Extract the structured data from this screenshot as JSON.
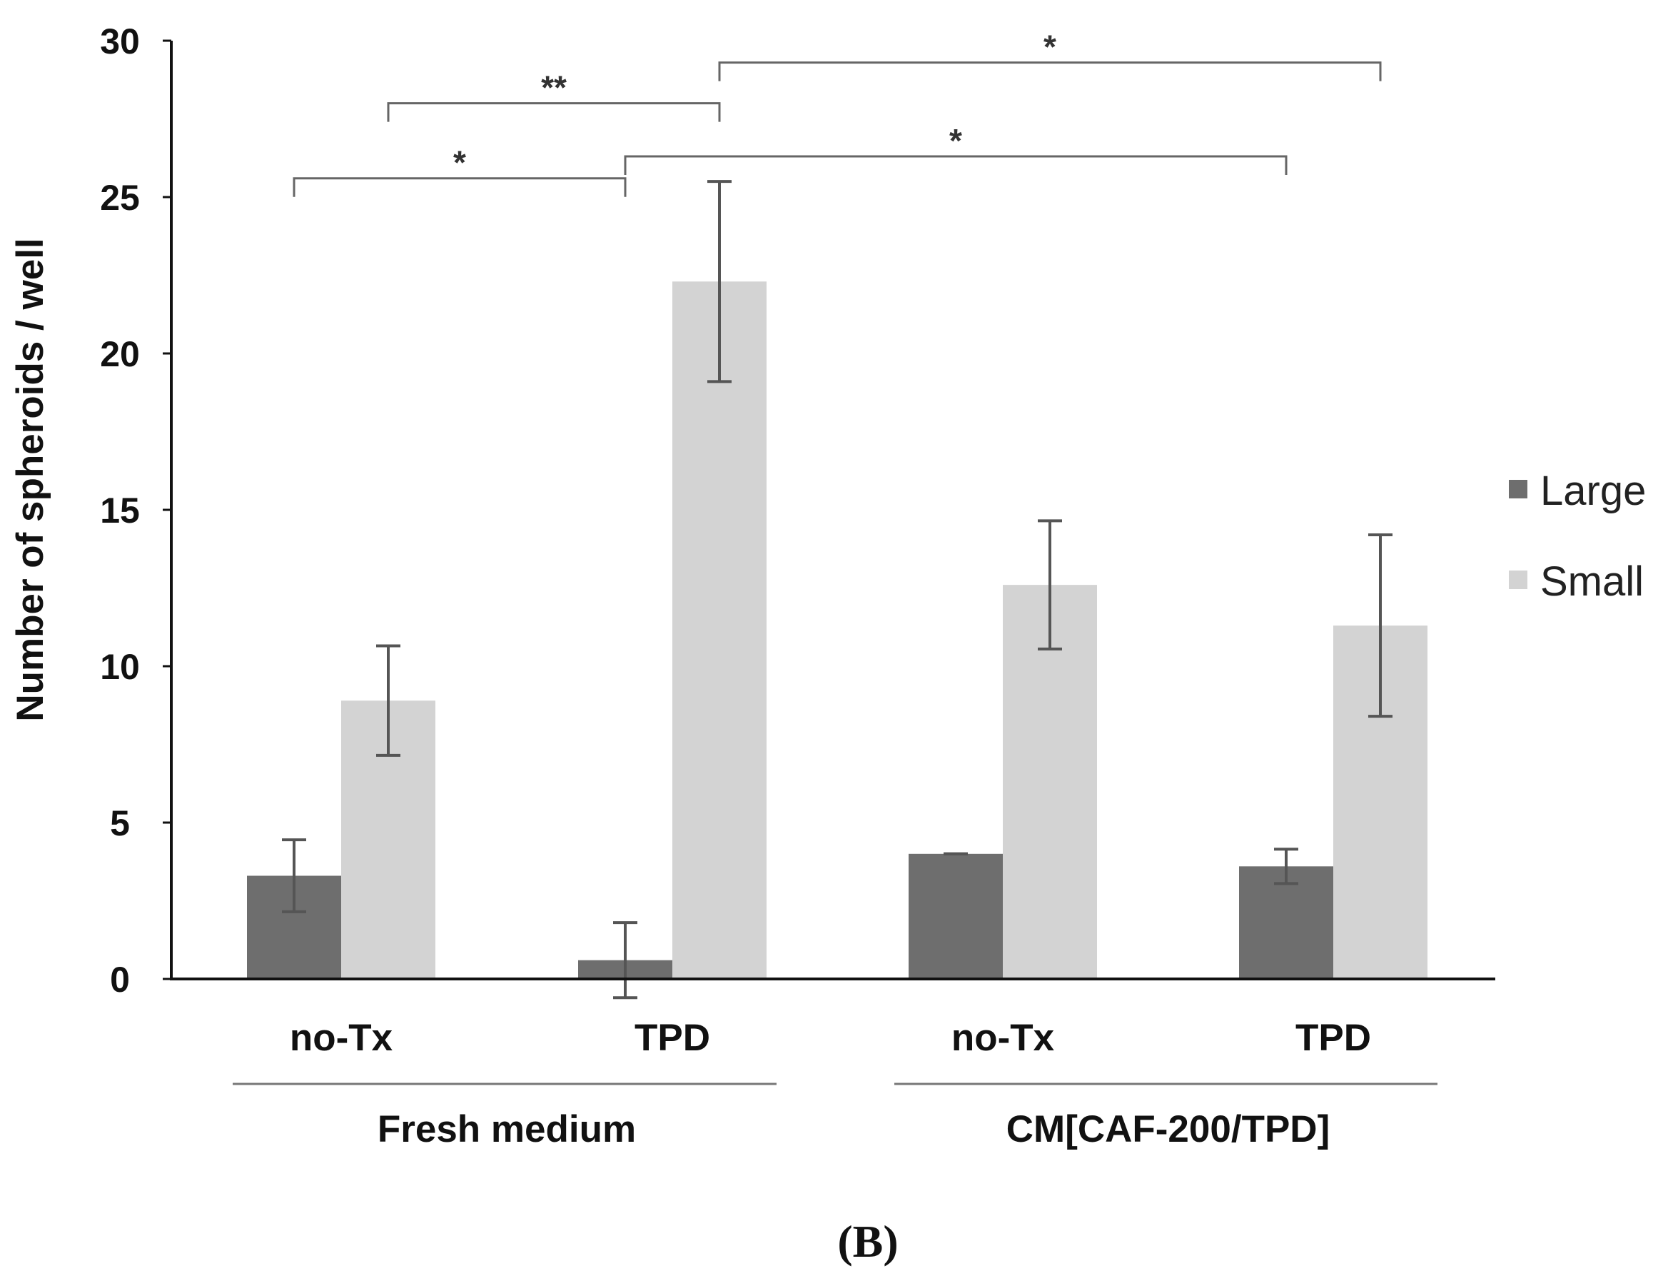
{
  "chart_data": {
    "type": "bar",
    "title": "",
    "xlabel": "",
    "ylabel": "Number of spheroids / well",
    "ylim": [
      0,
      30
    ],
    "yticks": [
      "0",
      "5",
      "10",
      "15",
      "20",
      "25",
      "30"
    ],
    "categories": [
      "no-Tx",
      "TPD",
      "no-Tx",
      "TPD"
    ],
    "groups": [
      {
        "label": "Fresh medium",
        "categories": [
          0,
          1
        ]
      },
      {
        "label": "CM[CAF-200/TPD]",
        "categories": [
          2,
          3
        ]
      }
    ],
    "series": [
      {
        "name": "Large",
        "color": "#6e6e6e",
        "values": [
          3.3,
          0.6,
          4.0,
          3.6
        ],
        "errors": [
          1.15,
          1.2,
          0.0,
          0.55
        ]
      },
      {
        "name": "Small",
        "color": "#d3d3d3",
        "values": [
          8.9,
          22.3,
          12.6,
          11.3
        ],
        "errors": [
          1.75,
          3.2,
          2.05,
          2.9
        ]
      }
    ],
    "legend_position": "right",
    "significance": [
      {
        "from_bar": [
          0,
          0
        ],
        "to_bar": [
          1,
          0
        ],
        "y": 25.6,
        "label": "*"
      },
      {
        "from_bar": [
          0,
          1
        ],
        "to_bar": [
          1,
          1
        ],
        "y": 28.0,
        "label": "**"
      },
      {
        "from_bar": [
          1,
          0
        ],
        "to_bar": [
          3,
          0
        ],
        "y": 26.3,
        "label": "*"
      },
      {
        "from_bar": [
          1,
          1
        ],
        "to_bar": [
          3,
          1
        ],
        "y": 29.3,
        "label": "*"
      }
    ],
    "panel_label": "(B)"
  }
}
